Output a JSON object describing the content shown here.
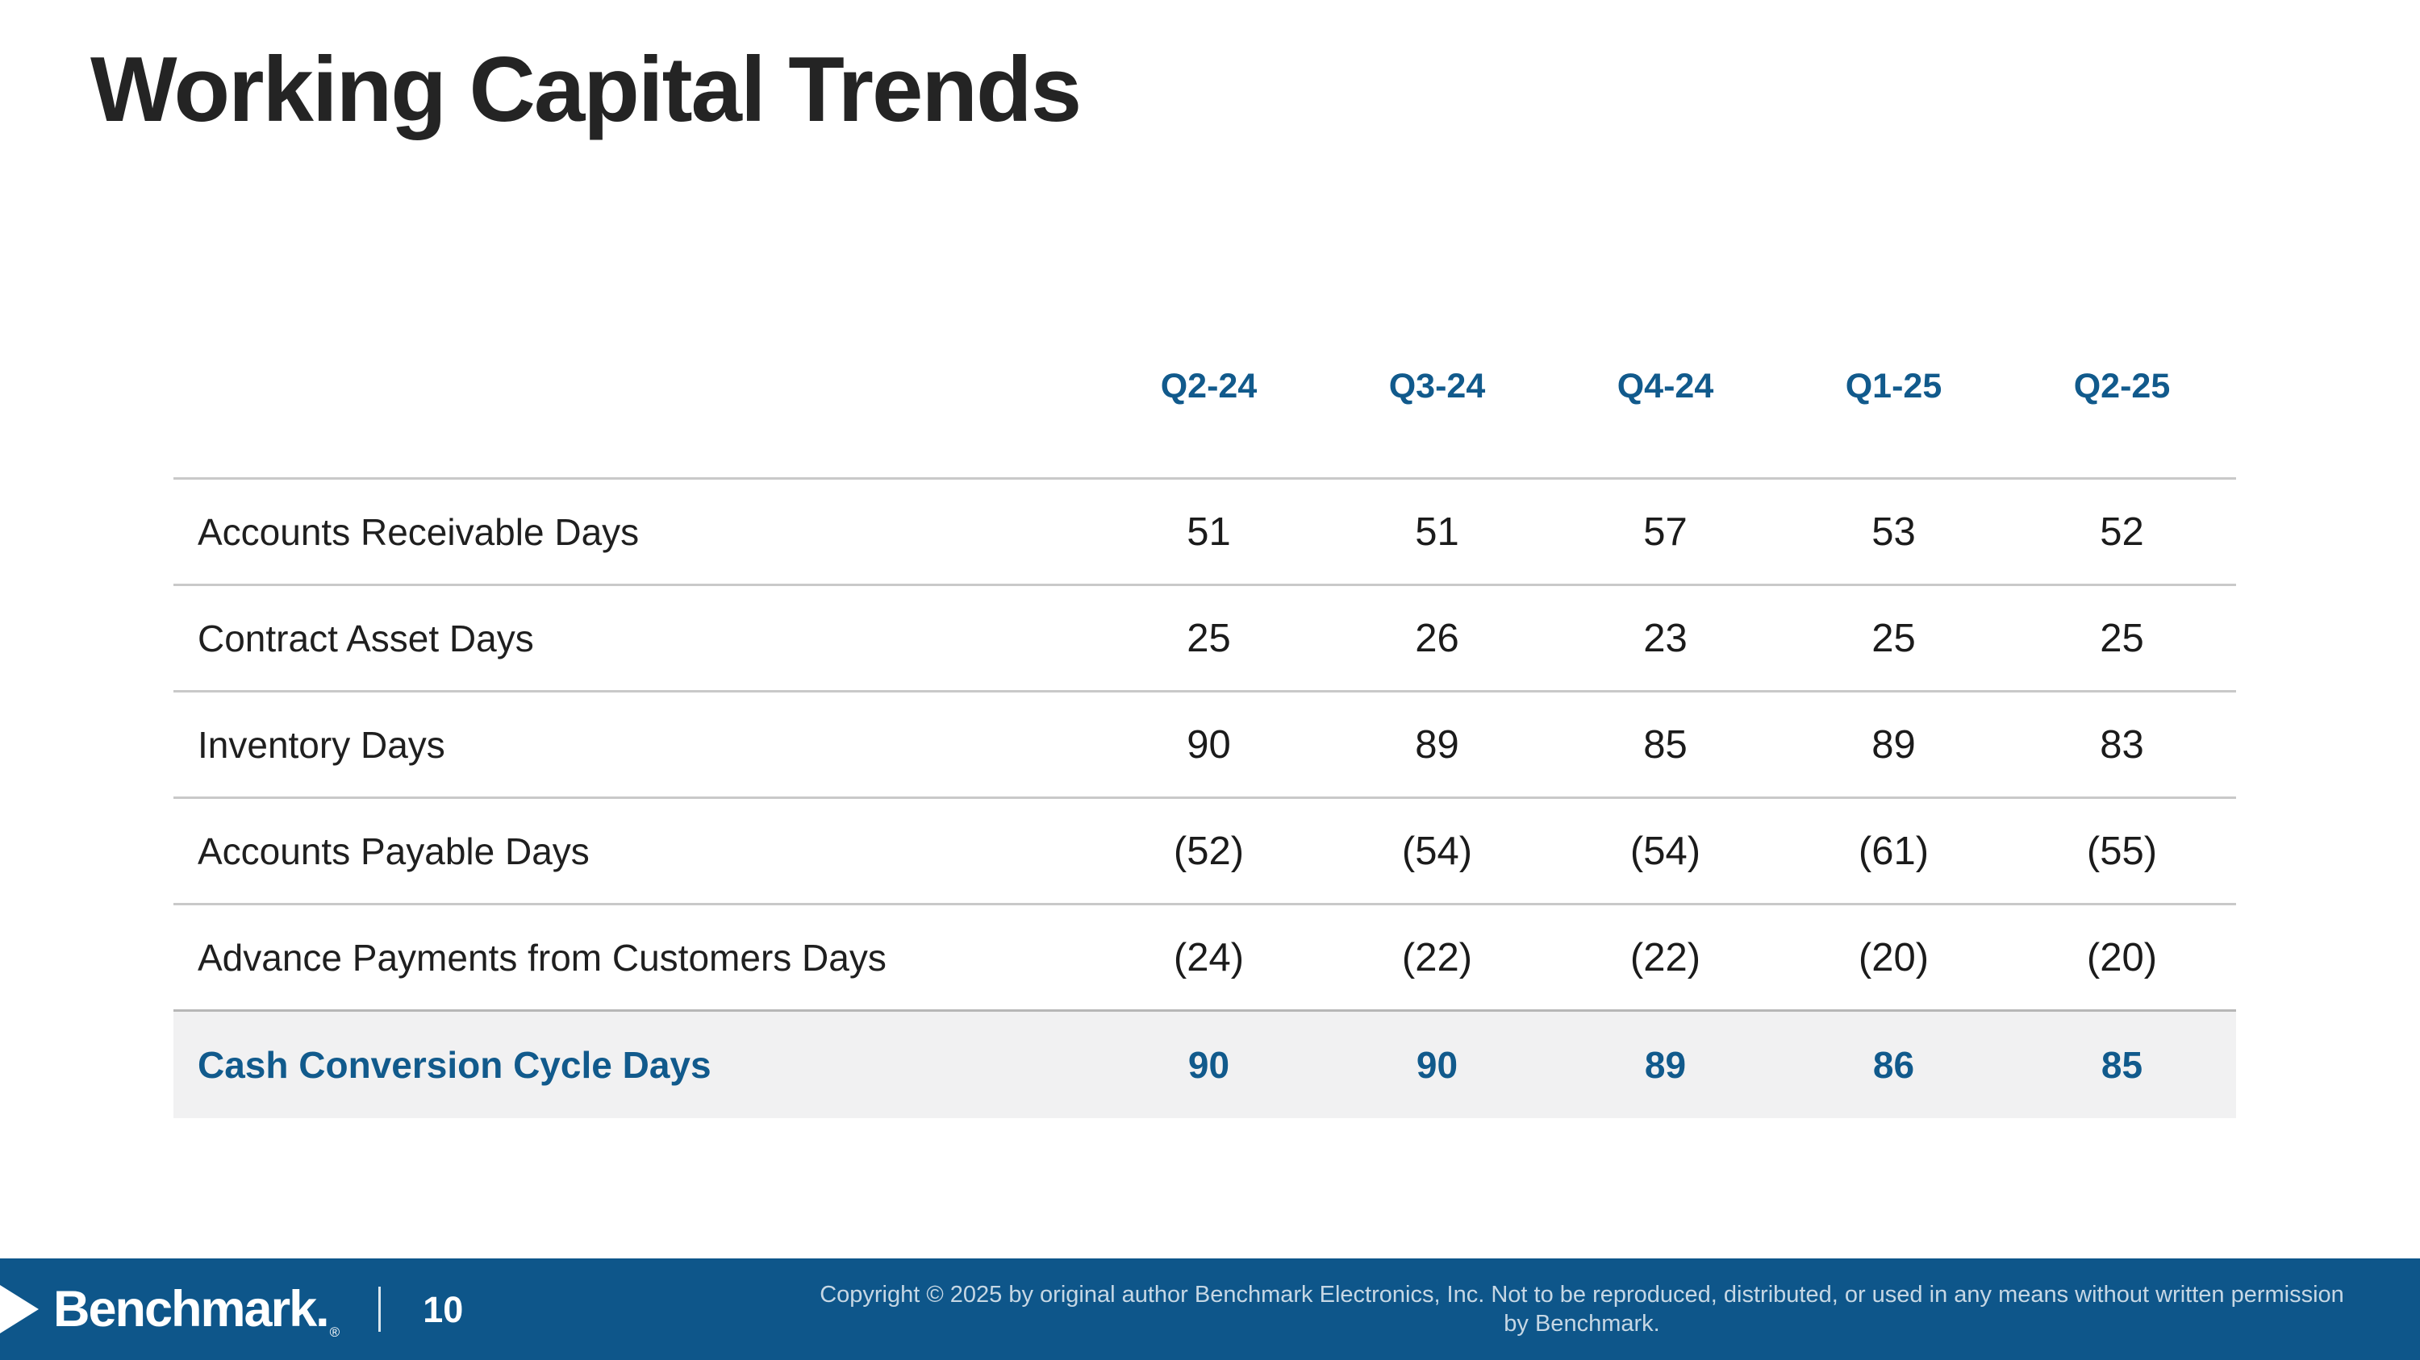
{
  "slide": {
    "title": "Working Capital Trends"
  },
  "table": {
    "columns": [
      "Q2-24",
      "Q3-24",
      "Q4-24",
      "Q1-25",
      "Q2-25"
    ],
    "rows": [
      {
        "label": "Accounts Receivable Days",
        "values": [
          "51",
          "51",
          "57",
          "53",
          "52"
        ]
      },
      {
        "label": "Contract Asset Days",
        "values": [
          "25",
          "26",
          "23",
          "25",
          "25"
        ]
      },
      {
        "label": "Inventory Days",
        "values": [
          "90",
          "89",
          "85",
          "89",
          "83"
        ]
      },
      {
        "label": "Accounts Payable Days",
        "values": [
          "(52)",
          "(54)",
          "(54)",
          "(61)",
          "(55)"
        ]
      },
      {
        "label": "Advance Payments from Customers Days",
        "values": [
          "(24)",
          "(22)",
          "(22)",
          "(20)",
          "(20)"
        ]
      }
    ],
    "total_row": {
      "label": "Cash Conversion Cycle Days",
      "values": [
        "90",
        "90",
        "89",
        "86",
        "85"
      ]
    }
  },
  "footer": {
    "brand": "Benchmark.",
    "registered_mark": "®",
    "page_number": "10",
    "copyright": "Copyright © 2025 by original author Benchmark Electronics, Inc. Not to be reproduced, distributed, or used in any means without written permission by Benchmark."
  },
  "colors": {
    "accent_blue": "#115a8c",
    "footer_blue": "#0e568a",
    "row_highlight": "#f1f1f2",
    "line_gray": "#c9c9c9",
    "title_text": "#242424"
  }
}
